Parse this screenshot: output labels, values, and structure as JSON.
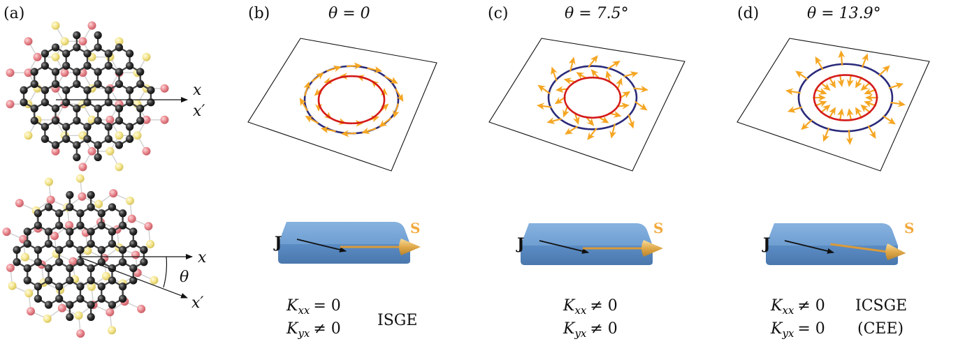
{
  "panels": [
    {
      "label": "(a)"
    },
    {
      "label": "(b)",
      "angle_text": "θ = 0",
      "J": "J",
      "S": "S",
      "eq1": {
        "K": "K",
        "sub": "xx",
        "rel": "= 0"
      },
      "eq2": {
        "K": "K",
        "sub": "yx",
        "rel": "≠ 0"
      },
      "effect": "ISGE",
      "effect2": ""
    },
    {
      "label": "(c)",
      "angle_text": "θ = 7.5°",
      "J": "J",
      "S": "S",
      "eq1": {
        "K": "K",
        "sub": "xx",
        "rel": "≠ 0"
      },
      "eq2": {
        "K": "K",
        "sub": "yx",
        "rel": "≠ 0"
      },
      "effect": "",
      "effect2": ""
    },
    {
      "label": "(d)",
      "angle_text": "θ = 13.9°",
      "J": "J",
      "S": "S",
      "eq1": {
        "K": "K",
        "sub": "xx",
        "rel": "≠ 0"
      },
      "eq2": {
        "K": "K",
        "sub": "yx",
        "rel": "= 0"
      },
      "effect": "ICSGE",
      "effect2": "(CEE)"
    }
  ],
  "lattice_axes": {
    "top_x": "x",
    "top_xp": "x′",
    "bot_x": "x",
    "bot_xp": "x′",
    "theta": "θ"
  },
  "colors": {
    "outer_circle": "#2a2a7a",
    "inner_circle": "#d41a1a",
    "arrow": "#f5a623",
    "slab": "#6e9fd3",
    "atom_black": "#2b2b2b",
    "atom_red": "#e88a8f",
    "atom_yellow": "#f3e58e"
  }
}
